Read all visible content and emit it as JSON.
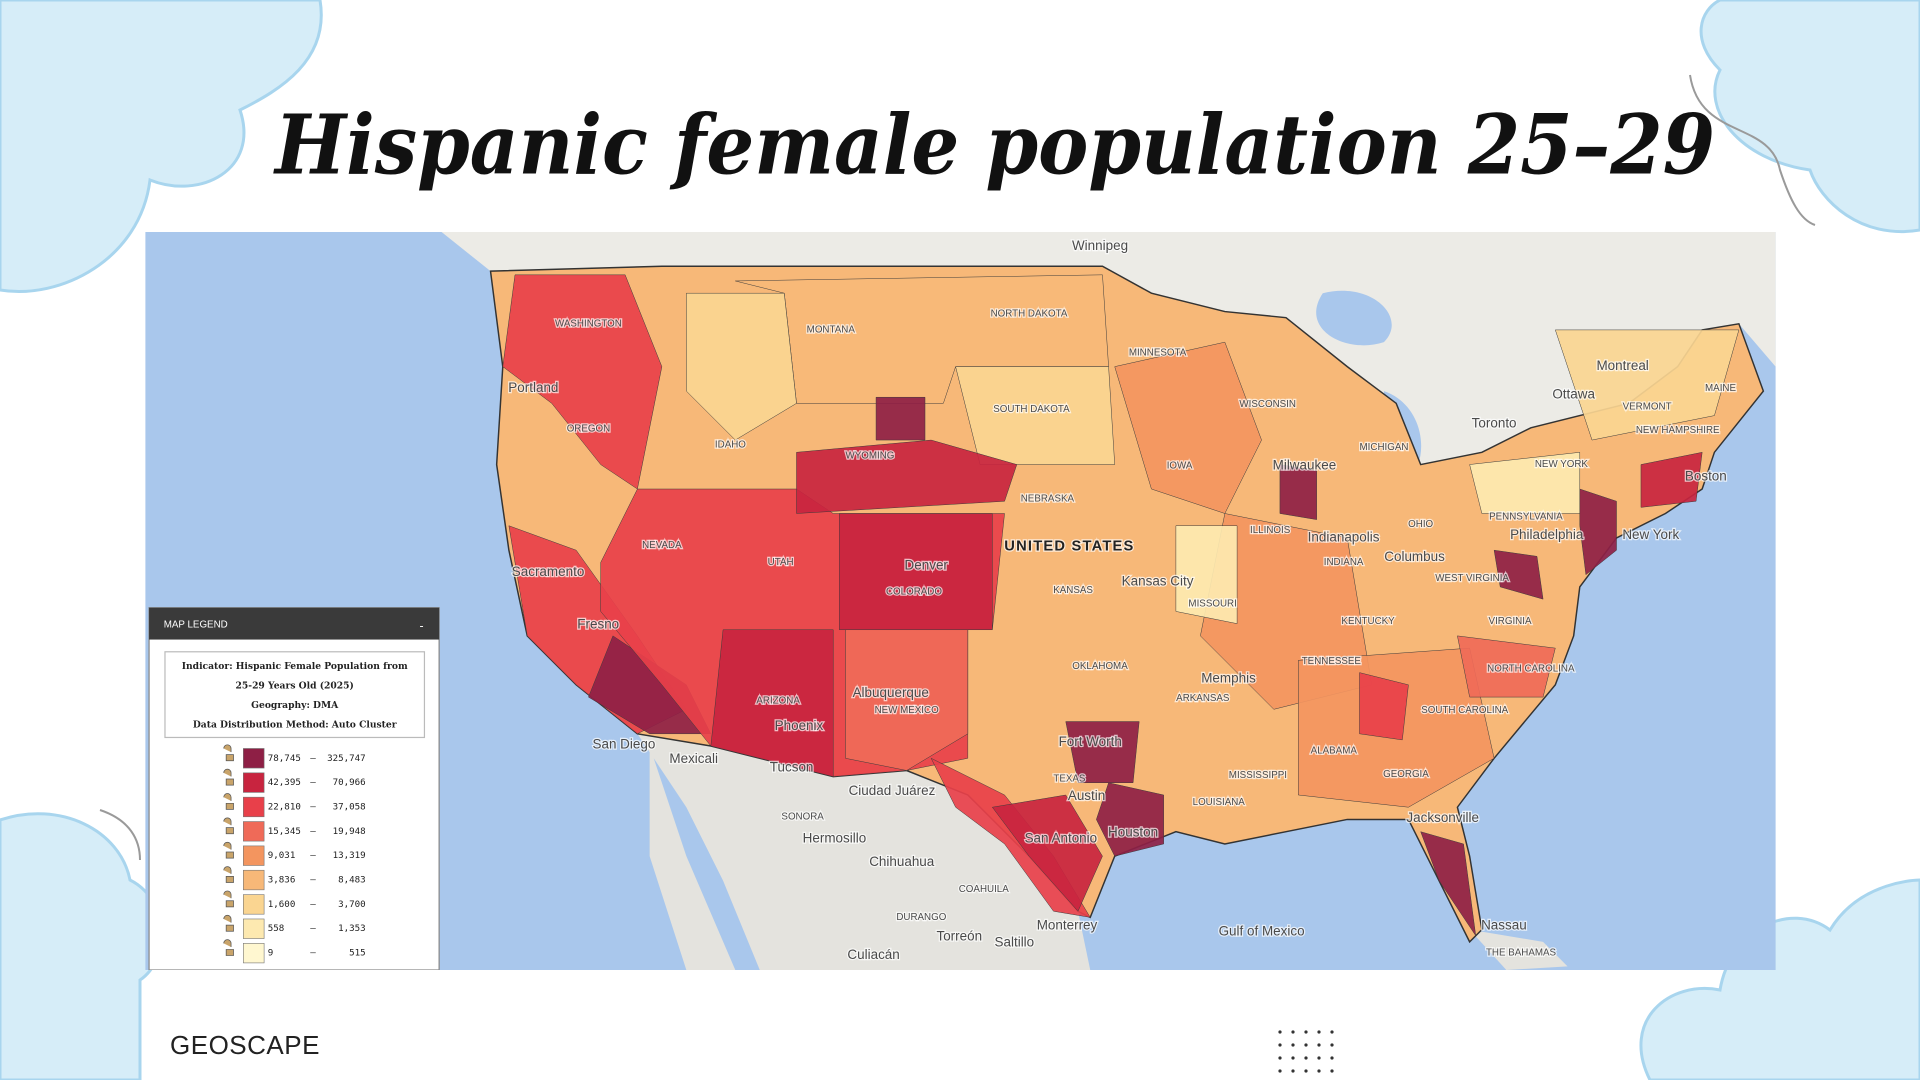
{
  "header": {
    "title": "Hispanic female population 25–29"
  },
  "map": {
    "labels": [
      "Winnipeg",
      "WASHINGTON",
      "MONTANA",
      "NORTH DAKOTA",
      "MINNESOTA",
      "Portland",
      "OREGON",
      "IDAHO",
      "SOUTH DAKOTA",
      "WISCONSIN",
      "Ottawa",
      "Montreal",
      "Toronto",
      "MAINE",
      "VERMONT",
      "NEW HAMPSHIRE",
      "WYOMING",
      "MICHIGAN",
      "NEW YORK",
      "Boston",
      "Milwaukee",
      "IOWA",
      "NEBRASKA",
      "NEVADA",
      "UTAH",
      "ILLINOIS",
      "Indianapolis",
      "OHIO",
      "PENNSYLVANIA",
      "Philadelphia",
      "New York",
      "UNITED STATES",
      "Denver",
      "Sacramento",
      "Columbus",
      "INDIANA",
      "KANSAS",
      "COLORADO",
      "Kansas City",
      "WEST VIRGINIA",
      "MISSOURI",
      "KENTUCKY",
      "VIRGINIA",
      "Fresno",
      "OKLAHOMA",
      "TENNESSEE",
      "NORTH CAROLINA",
      "ARKANSAS",
      "Memphis",
      "ARIZONA",
      "Albuquerque",
      "NEW MEXICO",
      "SOUTH CAROLINA",
      "ALABAMA",
      "GEORGIA",
      "Phoenix",
      "Fort Worth",
      "TEXAS",
      "MISSISSIPPI",
      "San Diego",
      "Mexicali",
      "Tucson",
      "Ciudad Juárez",
      "LOUISIANA",
      "Austin",
      "Jacksonville",
      "Hermosillo",
      "San Antonio",
      "Houston",
      "Chihuahua",
      "SONORA",
      "COAHUILA",
      "DURANGO",
      "Torreón",
      "Monterrey",
      "Saltillo",
      "Culiacán",
      "Gulf of Mexico",
      "Nassau",
      "THE BAHAMAS"
    ]
  },
  "legend": {
    "title": "MAP LEGEND",
    "collapse": "-",
    "info": [
      "Indicator: Hispanic Female Population from",
      "25-29 Years Old (2025)",
      "Geography: DMA",
      "Data Distribution Method: Auto Cluster"
    ],
    "separator": "—",
    "classes": [
      {
        "min": "78,745",
        "max": "325,747",
        "color": "#8e1f45"
      },
      {
        "min": "42,395",
        "max": "70,966",
        "color": "#c8243f"
      },
      {
        "min": "22,810",
        "max": "37,058",
        "color": "#e8404a"
      },
      {
        "min": "15,345",
        "max": "19,948",
        "color": "#ef6a58"
      },
      {
        "min": "9,031",
        "max": "13,319",
        "color": "#f3955f"
      },
      {
        "min": "3,836",
        "max": "8,483",
        "color": "#f7b878"
      },
      {
        "min": "1,600",
        "max": "3,700",
        "color": "#fad591"
      },
      {
        "min": "558",
        "max": "1,353",
        "color": "#fde9b0"
      },
      {
        "min": "9",
        "max": "515",
        "color": "#fff7d0"
      }
    ]
  },
  "footer": {
    "brand": "GEOSCAPE"
  }
}
